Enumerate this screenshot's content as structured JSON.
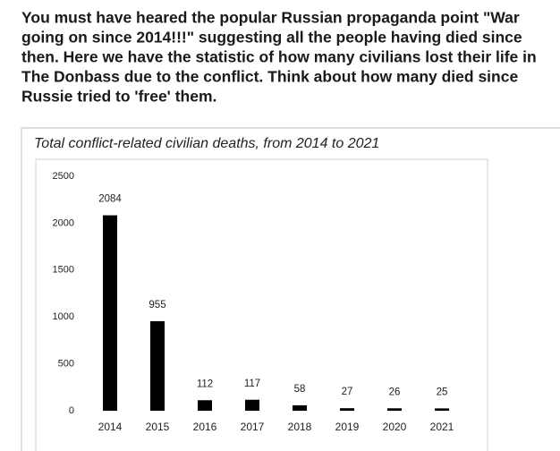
{
  "post": {
    "text_lines": [
      "You must have heared the popular Russian propaganda point \"War",
      "going on since 2014!!!\" suggesting all the people having died since",
      "then. Here we have the statistic of how many civilians lost their life in",
      "The Donbass due to the conflict. Think about how many died since",
      "Russie tried to 'free' them."
    ]
  },
  "chart_data": {
    "type": "bar",
    "title": "Total conflict-related civilian deaths, from 2014 to 2021",
    "categories": [
      "2014",
      "2015",
      "2016",
      "2017",
      "2018",
      "2019",
      "2020",
      "2021"
    ],
    "values": [
      2084,
      955,
      112,
      117,
      58,
      27,
      26,
      25
    ],
    "color": "#000000",
    "ylim": [
      0,
      2500
    ],
    "yticks": [
      0,
      500,
      1000,
      1500,
      2000,
      2500
    ],
    "grid": false
  }
}
